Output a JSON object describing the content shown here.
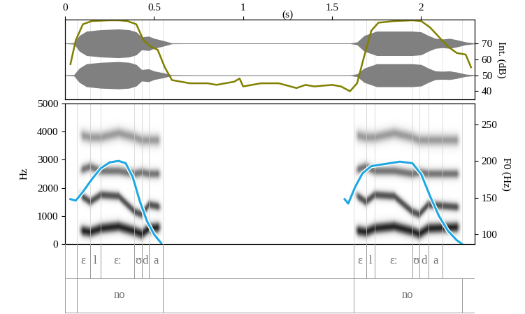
{
  "chart_data": [
    {
      "type": "line",
      "xlabel": "(s)",
      "y2label": "Int. (dB)",
      "xlim": [
        0,
        2.3
      ],
      "xticks": [
        0,
        0.5,
        1,
        1.5,
        2
      ],
      "ylim": [
        -1,
        1
      ],
      "yticks": [],
      "y2lim": [
        35,
        85
      ],
      "y2ticks": [
        40,
        50,
        60,
        70
      ],
      "series": [
        {
          "type": "area",
          "color": "#808080",
          "x": [
            0,
            0.05,
            0.08,
            0.12,
            0.2,
            0.3,
            0.36,
            0.4,
            0.43,
            0.47,
            0.5,
            0.55,
            0.6,
            0.7,
            1.0,
            1.3,
            1.6,
            1.64,
            1.68,
            1.75,
            1.85,
            1.95,
            2.0,
            2.04,
            2.08,
            2.12,
            2.16,
            2.2,
            2.25,
            2.3
          ],
          "values": [
            0.02,
            0.05,
            0.55,
            0.85,
            0.95,
            1.0,
            0.95,
            0.8,
            0.45,
            0.5,
            0.35,
            0.2,
            0.03,
            0.02,
            0.02,
            0.02,
            0.02,
            0.1,
            0.55,
            0.85,
            0.85,
            0.85,
            0.8,
            0.55,
            0.35,
            0.3,
            0.35,
            0.25,
            0.1,
            0.03
          ]
        },
        {
          "type": "area",
          "color": "#808080",
          "x": [
            0,
            0.05,
            0.08,
            0.12,
            0.2,
            0.3,
            0.36,
            0.4,
            0.43,
            0.47,
            0.5,
            0.55,
            0.6,
            0.7,
            1.0,
            1.3,
            1.6,
            1.64,
            1.68,
            1.75,
            1.85,
            1.95,
            2.0,
            2.04,
            2.08,
            2.12,
            2.16,
            2.2,
            2.25,
            2.3
          ],
          "values": [
            0.02,
            0.05,
            0.5,
            0.8,
            0.9,
            0.95,
            0.9,
            0.75,
            0.4,
            0.45,
            0.3,
            0.18,
            0.03,
            0.02,
            0.02,
            0.02,
            0.02,
            0.1,
            0.5,
            0.8,
            0.8,
            0.8,
            0.75,
            0.5,
            0.3,
            0.28,
            0.3,
            0.22,
            0.08,
            0.03
          ]
        },
        {
          "type": "line",
          "axis": "y2",
          "color": "#808000",
          "x": [
            0.03,
            0.06,
            0.1,
            0.15,
            0.25,
            0.3,
            0.35,
            0.4,
            0.44,
            0.48,
            0.52,
            0.56,
            0.6,
            0.65,
            0.7,
            0.8,
            0.85,
            0.9,
            0.95,
            0.98,
            1.0,
            1.05,
            1.1,
            1.2,
            1.3,
            1.35,
            1.4,
            1.5,
            1.55,
            1.6,
            1.64,
            1.68,
            1.72,
            1.76,
            1.85,
            1.95,
            2.0,
            2.05,
            2.1,
            2.15,
            2.2,
            2.25,
            2.28
          ],
          "values": [
            57,
            72,
            82,
            84,
            84.5,
            84.5,
            84,
            82,
            72,
            68,
            66,
            55,
            47,
            46,
            45,
            45,
            44,
            45,
            46,
            48,
            43,
            44,
            45,
            45,
            42,
            44,
            43,
            44,
            43,
            40,
            45,
            62,
            78,
            83,
            84,
            84.5,
            84,
            80,
            74,
            68,
            64,
            63,
            55
          ]
        }
      ]
    },
    {
      "type": "spectrogram",
      "ylabel": "Hz",
      "y2label": "F0 (Hz)",
      "xlim": [
        0,
        2.3
      ],
      "ylim": [
        0,
        5000
      ],
      "yticks": [
        0,
        1000,
        2000,
        3000,
        4000,
        5000
      ],
      "y2lim": [
        87,
        278
      ],
      "y2ticks": [
        100,
        150,
        200,
        250
      ],
      "formants": [
        {
          "x": [
            0.07,
            0.14,
            0.2,
            0.3,
            0.39,
            0.43,
            0.47,
            0.55
          ],
          "tracks": [
            [
              500,
              420,
              550,
              620,
              450,
              350,
              550,
              600
            ],
            [
              1800,
              1500,
              1750,
              1700,
              1150,
              1050,
              1400,
              1300
            ],
            [
              2600,
              2750,
              2600,
              2600,
              2500,
              2550,
              2500,
              2500
            ],
            [
              3900,
              3800,
              3800,
              3950,
              3800,
              3700,
              3700,
              3700
            ]
          ]
        },
        {
          "x": [
            1.62,
            1.69,
            1.74,
            1.85,
            1.95,
            1.99,
            2.04,
            2.23
          ],
          "tracks": [
            [
              500,
              420,
              550,
              620,
              450,
              350,
              550,
              600
            ],
            [
              1800,
              1500,
              1750,
              1700,
              1150,
              1050,
              1400,
              1300
            ],
            [
              2600,
              2750,
              2600,
              2600,
              2500,
              2550,
              2500,
              2500
            ],
            [
              3900,
              3800,
              3800,
              3950,
              3800,
              3700,
              3700,
              3700
            ]
          ]
        }
      ],
      "series": [
        {
          "type": "line",
          "axis": "y2",
          "color": "#1ea7e1",
          "x": [
            0.03,
            0.06,
            0.1,
            0.15,
            0.2,
            0.25,
            0.3,
            0.34,
            0.38,
            0.42,
            0.46,
            0.5,
            0.54,
            1.0,
            1.57,
            1.59,
            1.63,
            1.67,
            1.72,
            1.8,
            1.88,
            1.95,
            2.0,
            2.05,
            2.1,
            2.15,
            2.2,
            2.23
          ],
          "values": [
            148,
            146,
            158,
            175,
            190,
            198,
            200,
            197,
            178,
            145,
            118,
            100,
            88,
            null,
            148,
            142,
            165,
            183,
            193,
            196,
            199,
            197,
            182,
            152,
            125,
            105,
            92,
            87
          ]
        }
      ],
      "tiers": [
        {
          "intervals": [
            {
              "start": 0.065,
              "end": 0.14,
              "label": "ɛ"
            },
            {
              "start": 0.14,
              "end": 0.2,
              "label": "l"
            },
            {
              "start": 0.2,
              "end": 0.39,
              "label": "ɛː"
            },
            {
              "start": 0.39,
              "end": 0.43,
              "label": "ʊ"
            },
            {
              "start": 0.43,
              "end": 0.47,
              "label": "d"
            },
            {
              "start": 0.47,
              "end": 0.55,
              "label": "a"
            },
            {
              "start": 1.62,
              "end": 1.69,
              "label": "ɛ"
            },
            {
              "start": 1.69,
              "end": 1.74,
              "label": "l"
            },
            {
              "start": 1.74,
              "end": 1.95,
              "label": "ɛː"
            },
            {
              "start": 1.95,
              "end": 1.99,
              "label": "ʊ"
            },
            {
              "start": 1.99,
              "end": 2.04,
              "label": "d"
            },
            {
              "start": 2.04,
              "end": 2.12,
              "label": "a"
            }
          ]
        },
        {
          "intervals": [
            {
              "start": 0.065,
              "end": 0.55,
              "label": "no"
            },
            {
              "start": 1.62,
              "end": 2.23,
              "label": "no"
            }
          ]
        }
      ]
    }
  ]
}
